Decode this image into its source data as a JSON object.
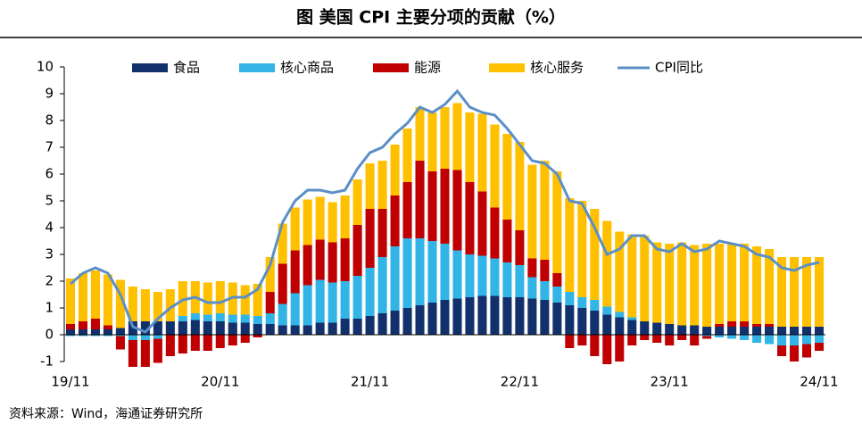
{
  "chart_data": {
    "type": "bar",
    "stacked": true,
    "title": "图  美国 CPI 主要分项的贡献（%）",
    "source": "资料来源：Wind，海通证券研究所",
    "categories": [
      "19/11",
      null,
      null,
      null,
      null,
      null,
      null,
      null,
      null,
      null,
      null,
      null,
      "20/11",
      null,
      null,
      null,
      null,
      null,
      null,
      null,
      null,
      null,
      null,
      null,
      "21/11",
      null,
      null,
      null,
      null,
      null,
      null,
      null,
      null,
      null,
      null,
      null,
      "22/11",
      null,
      null,
      null,
      null,
      null,
      null,
      null,
      null,
      null,
      null,
      null,
      "23/11",
      null,
      null,
      null,
      null,
      null,
      null,
      null,
      null,
      null,
      null,
      null,
      "24/11"
    ],
    "ylim": [
      -1,
      10
    ],
    "yticks": [
      -1,
      0,
      1,
      2,
      3,
      4,
      5,
      6,
      7,
      8,
      9,
      10
    ],
    "legend": "top",
    "series": [
      {
        "name": "食品",
        "color": "#12306b",
        "values": [
          0.2,
          0.2,
          0.2,
          0.2,
          0.25,
          0.5,
          0.5,
          0.5,
          0.5,
          0.5,
          0.55,
          0.5,
          0.5,
          0.45,
          0.45,
          0.4,
          0.4,
          0.35,
          0.35,
          0.35,
          0.45,
          0.45,
          0.6,
          0.6,
          0.7,
          0.8,
          0.9,
          1.0,
          1.1,
          1.2,
          1.3,
          1.35,
          1.4,
          1.45,
          1.45,
          1.4,
          1.4,
          1.35,
          1.3,
          1.2,
          1.1,
          1.0,
          0.9,
          0.75,
          0.65,
          0.55,
          0.5,
          0.45,
          0.4,
          0.35,
          0.35,
          0.3,
          0.3,
          0.3,
          0.3,
          0.3,
          0.3,
          0.3,
          0.3,
          0.3,
          0.3
        ]
      },
      {
        "name": "核心商品",
        "color": "#33b4e6",
        "values": [
          -0.05,
          -0.05,
          -0.05,
          -0.05,
          -0.05,
          -0.2,
          -0.2,
          -0.15,
          0.0,
          0.2,
          0.25,
          0.25,
          0.3,
          0.3,
          0.3,
          0.3,
          0.4,
          0.8,
          1.2,
          1.5,
          1.6,
          1.5,
          1.4,
          1.6,
          1.8,
          2.1,
          2.4,
          2.6,
          2.5,
          2.3,
          2.1,
          1.8,
          1.6,
          1.5,
          1.4,
          1.3,
          1.2,
          0.8,
          0.7,
          0.6,
          0.5,
          0.4,
          0.4,
          0.3,
          0.2,
          0.1,
          0.0,
          0.0,
          0.0,
          0.0,
          0.0,
          -0.05,
          -0.1,
          -0.15,
          -0.2,
          -0.3,
          -0.35,
          -0.4,
          -0.4,
          -0.35,
          -0.3
        ]
      },
      {
        "name": "能源",
        "color": "#c00000",
        "values": [
          0.2,
          0.3,
          0.4,
          0.15,
          -0.5,
          -1.0,
          -1.0,
          -0.9,
          -0.8,
          -0.7,
          -0.6,
          -0.6,
          -0.5,
          -0.4,
          -0.3,
          -0.1,
          0.8,
          1.5,
          1.6,
          1.5,
          1.5,
          1.5,
          1.6,
          1.9,
          2.2,
          1.8,
          1.9,
          2.1,
          2.9,
          2.6,
          2.8,
          3.0,
          2.7,
          2.4,
          1.9,
          1.6,
          1.3,
          0.7,
          0.8,
          0.5,
          -0.5,
          -0.4,
          -0.8,
          -1.1,
          -1.0,
          -0.4,
          -0.2,
          -0.3,
          -0.4,
          -0.2,
          -0.4,
          -0.1,
          0.1,
          0.2,
          0.2,
          0.1,
          0.1,
          -0.4,
          -0.6,
          -0.5,
          -0.3
        ]
      },
      {
        "name": "核心服务",
        "color": "#ffc000",
        "values": [
          1.7,
          1.8,
          1.8,
          1.9,
          1.8,
          1.3,
          1.2,
          1.1,
          1.2,
          1.3,
          1.2,
          1.2,
          1.2,
          1.2,
          1.1,
          1.2,
          1.3,
          1.5,
          1.6,
          1.7,
          1.6,
          1.5,
          1.6,
          1.7,
          1.7,
          1.8,
          1.9,
          2.0,
          2.0,
          2.2,
          2.3,
          2.5,
          2.6,
          2.9,
          3.1,
          3.2,
          3.3,
          3.5,
          3.7,
          3.8,
          3.5,
          3.6,
          3.4,
          3.2,
          3.0,
          3.1,
          3.2,
          3.0,
          3.0,
          3.1,
          3.0,
          3.1,
          3.0,
          2.9,
          2.9,
          2.9,
          2.8,
          2.6,
          2.6,
          2.6,
          2.6
        ]
      },
      {
        "name": "CPI同比",
        "color": "#5b8fc7",
        "type": "line",
        "values": [
          1.9,
          2.3,
          2.5,
          2.3,
          1.5,
          0.3,
          0.1,
          0.6,
          1.0,
          1.3,
          1.4,
          1.2,
          1.2,
          1.4,
          1.4,
          1.7,
          2.6,
          4.2,
          5.0,
          5.4,
          5.4,
          5.3,
          5.4,
          6.2,
          6.8,
          7.0,
          7.5,
          7.9,
          8.5,
          8.3,
          8.6,
          9.1,
          8.5,
          8.3,
          8.2,
          7.7,
          7.1,
          6.5,
          6.4,
          6.0,
          5.0,
          4.9,
          4.0,
          3.0,
          3.2,
          3.7,
          3.7,
          3.2,
          3.1,
          3.4,
          3.1,
          3.2,
          3.5,
          3.4,
          3.3,
          3.0,
          2.9,
          2.5,
          2.4,
          2.6,
          2.7
        ]
      }
    ]
  }
}
